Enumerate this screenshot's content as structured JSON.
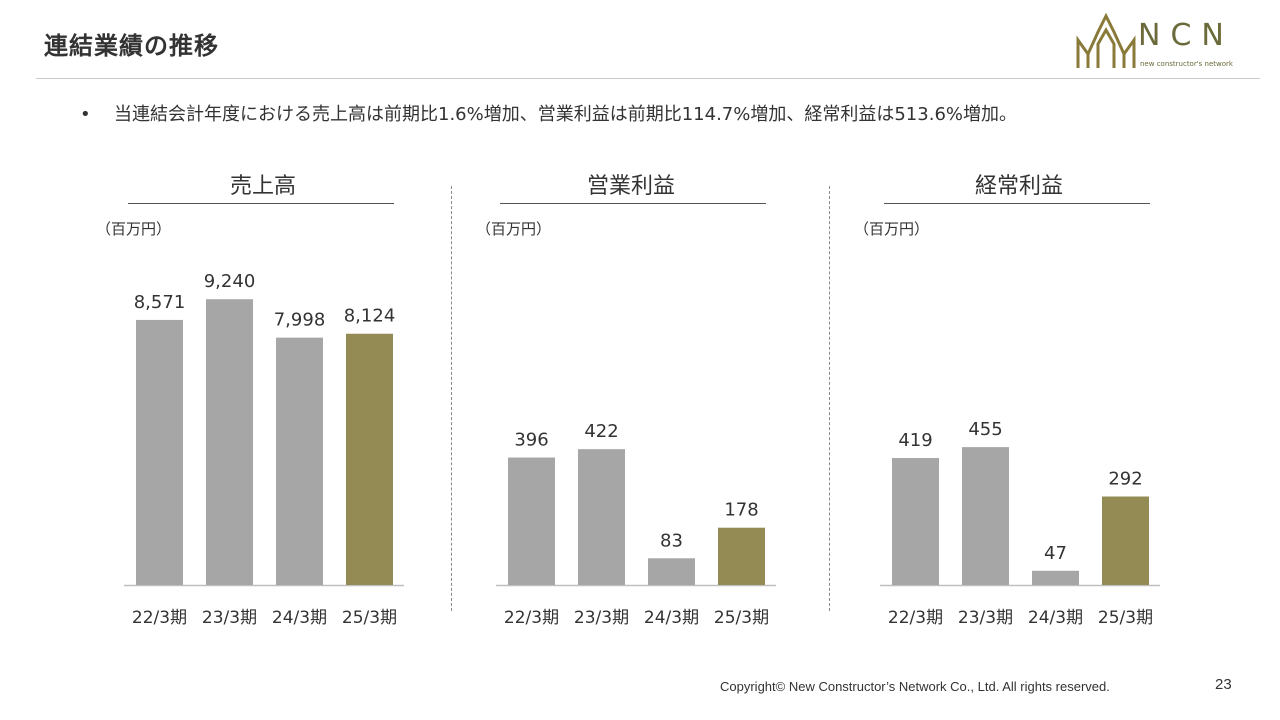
{
  "header": {
    "title": "連結業績の推移",
    "logo_text": "NCN",
    "logo_subtext": "new constructor's network"
  },
  "summary": {
    "bullet": "当連結会計年度における売上高は前期比1.6%増加、営業利益は前期比114.7%増加、経常利益は513.6%増加。"
  },
  "colors": {
    "bar_past": "#a6a6a6",
    "bar_current": "#948a54",
    "axis": "#bfbfbf",
    "logo": "#8a7a3a"
  },
  "chart_data": [
    {
      "type": "bar",
      "title": "売上高",
      "unit": "（百万円）",
      "categories": [
        "22/3期",
        "23/3期",
        "24/3期",
        "25/3期"
      ],
      "values": [
        8571,
        9240,
        7998,
        8124
      ],
      "labels": [
        "8,571",
        "9,240",
        "7,998",
        "8,124"
      ],
      "highlight_index": 3,
      "ylim": [
        0,
        9700
      ]
    },
    {
      "type": "bar",
      "title": "営業利益",
      "unit": "（百万円）",
      "categories": [
        "22/3期",
        "23/3期",
        "24/3期",
        "25/3期"
      ],
      "values": [
        396,
        422,
        83,
        178
      ],
      "labels": [
        "396",
        "422",
        "83",
        "178"
      ],
      "highlight_index": 3,
      "ylim": [
        0,
        932
      ]
    },
    {
      "type": "bar",
      "title": "経常利益",
      "unit": "（百万円）",
      "categories": [
        "22/3期",
        "23/3期",
        "24/3期",
        "25/3期"
      ],
      "values": [
        419,
        455,
        47,
        292
      ],
      "labels": [
        "419",
        "455",
        "47",
        "292"
      ],
      "highlight_index": 3,
      "ylim": [
        0,
        990
      ]
    }
  ],
  "footer": {
    "copyright": "Copyright© New Constructor’s Network Co., Ltd. All rights reserved.",
    "page_number": "23"
  }
}
